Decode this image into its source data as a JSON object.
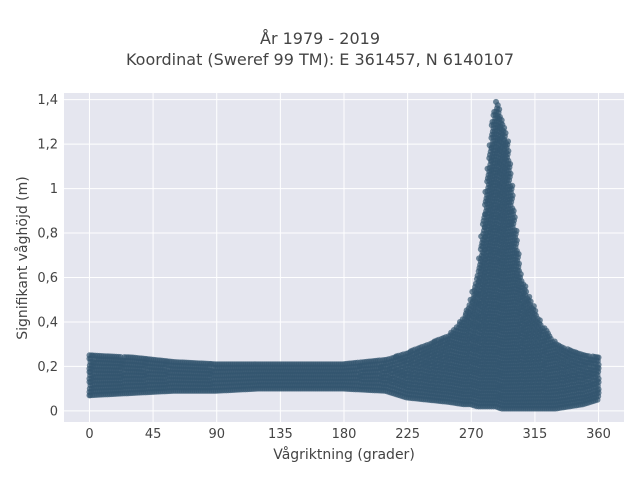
{
  "chart_data": {
    "type": "scatter",
    "title": [
      "År 1979 - 2019",
      "Koordinat (Sweref 99 TM): E 361457, N 6140107"
    ],
    "xlabel": "Vågriktning (grader)",
    "ylabel": "Signifikant våghöjd (m)",
    "xlim": [
      -18,
      378
    ],
    "ylim": [
      -0.05,
      1.43
    ],
    "xticks": [
      0,
      45,
      90,
      135,
      180,
      225,
      270,
      315,
      360
    ],
    "xtick_labels": [
      "0",
      "45",
      "90",
      "135",
      "180",
      "225",
      "270",
      "315",
      "360"
    ],
    "yticks": [
      0,
      0.2,
      0.4,
      0.6,
      0.8,
      1.0,
      1.2,
      1.4
    ],
    "ytick_labels": [
      "0",
      "0,2",
      "0,4",
      "0,6",
      "0,8",
      "1",
      "1,2",
      "1,4"
    ],
    "grid": true,
    "marker_color": "#33566f",
    "background_color": "#e5e6ef",
    "envelope": {
      "x": [
        0,
        30,
        60,
        90,
        120,
        150,
        180,
        210,
        225,
        240,
        255,
        265,
        270,
        275,
        280,
        285,
        288,
        292,
        296,
        300,
        305,
        310,
        315,
        320,
        330,
        340,
        350,
        360
      ],
      "y_min": [
        0.07,
        0.08,
        0.09,
        0.09,
        0.1,
        0.1,
        0.1,
        0.09,
        0.06,
        0.05,
        0.04,
        0.03,
        0.03,
        0.02,
        0.02,
        0.02,
        0.02,
        0.01,
        0.01,
        0.01,
        0.01,
        0.01,
        0.01,
        0.01,
        0.01,
        0.02,
        0.03,
        0.05
      ],
      "y_max": [
        0.25,
        0.24,
        0.22,
        0.21,
        0.21,
        0.21,
        0.21,
        0.23,
        0.26,
        0.3,
        0.34,
        0.42,
        0.5,
        0.62,
        0.95,
        1.3,
        1.39,
        1.3,
        1.2,
        0.9,
        0.6,
        0.52,
        0.45,
        0.38,
        0.3,
        0.27,
        0.25,
        0.24
      ]
    }
  }
}
